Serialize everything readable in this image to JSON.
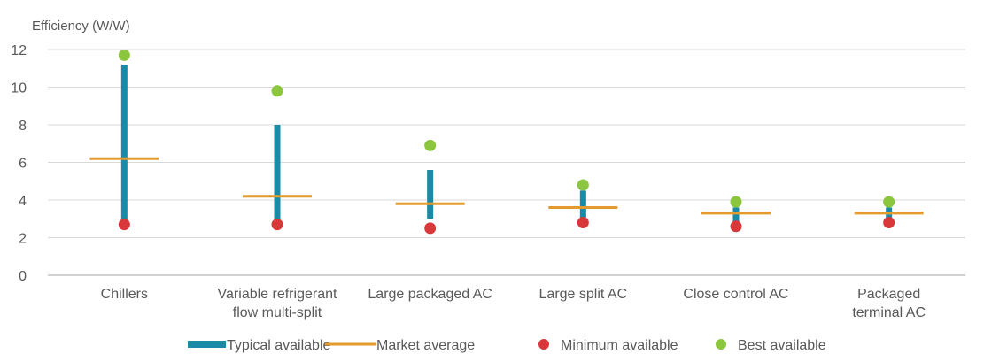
{
  "chart_data": {
    "type": "range",
    "ylabel": "Efficiency (W/W)",
    "ylim": [
      0,
      12
    ],
    "yticks": [
      0,
      2,
      4,
      6,
      8,
      10,
      12
    ],
    "grid": true,
    "legend_position": "bottom",
    "categories": [
      [
        "Chillers"
      ],
      [
        "Variable refrigerant",
        "flow multi-split"
      ],
      [
        "Large packaged AC"
      ],
      [
        "Large split AC"
      ],
      [
        "Close control AC"
      ],
      [
        "Packaged",
        "terminal AC"
      ]
    ],
    "series": [
      {
        "name": "Typical available",
        "kind": "range",
        "color": "#1a8aa6",
        "low": [
          2.7,
          2.7,
          3.0,
          2.9,
          2.8,
          2.9
        ],
        "high": [
          11.2,
          8.0,
          5.6,
          4.5,
          3.6,
          3.6
        ]
      },
      {
        "name": "Market average",
        "kind": "dash",
        "color": "#e59a2e",
        "values": [
          6.2,
          4.2,
          3.8,
          3.6,
          3.3,
          3.3
        ]
      },
      {
        "name": "Minimum available",
        "kind": "dot",
        "color": "#d9383a",
        "values": [
          2.7,
          2.7,
          2.5,
          2.8,
          2.6,
          2.8
        ]
      },
      {
        "name": "Best available",
        "kind": "dot",
        "color": "#8cc63f",
        "values": [
          11.7,
          9.8,
          6.9,
          4.8,
          3.9,
          3.9
        ]
      }
    ]
  }
}
